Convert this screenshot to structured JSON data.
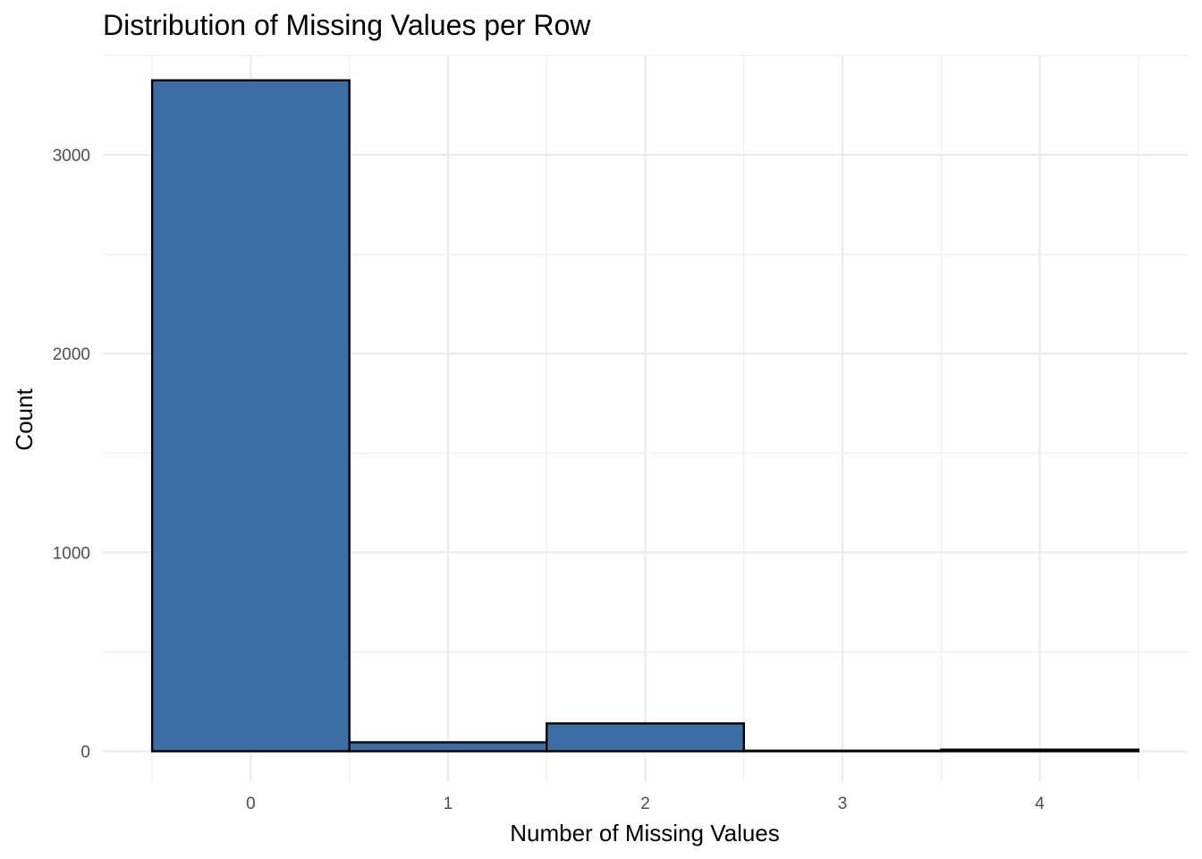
{
  "chart_data": {
    "type": "bar",
    "title": "Distribution of Missing Values per Row",
    "xlabel": "Number of Missing Values",
    "ylabel": "Count",
    "categories": [
      "0",
      "1",
      "2",
      "3",
      "4"
    ],
    "x": [
      0,
      1,
      2,
      3,
      4
    ],
    "values": [
      3375,
      45,
      140,
      3,
      8
    ],
    "xlim": [
      -0.75,
      4.75
    ],
    "ylim": [
      -155,
      3500
    ],
    "y_ticks": [
      0,
      1000,
      2000,
      3000
    ],
    "y_tick_labels": [
      "0",
      "1000",
      "2000",
      "3000"
    ],
    "x_ticks": [
      0,
      1,
      2,
      3,
      4
    ],
    "x_tick_labels": [
      "0",
      "1",
      "2",
      "3",
      "4"
    ],
    "grid": true,
    "legend": "none",
    "colors": {
      "bar_fill": "#3a6ea5",
      "bar_stroke": "#000000",
      "grid": "#ebebeb",
      "tick_text": "#4d4d4d",
      "background": "#ffffff"
    }
  }
}
